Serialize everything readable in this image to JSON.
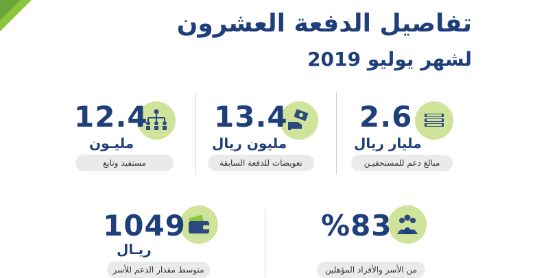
{
  "header": {
    "title": "تفاصيل الدفعة العشرون",
    "subtitle": "لشهر يوليو 2019"
  },
  "stats": [
    {
      "value": "2.6",
      "unit": "مليار ريال",
      "label": "مبالغ دعم للمستحقيـن",
      "icon": "money-stack-icon"
    },
    {
      "value": "13.4",
      "unit": "مليون ريال",
      "label": "تعويضات للدفعة السابقة",
      "icon": "hand-money-icon"
    },
    {
      "value": "12.4",
      "unit": "مليـون",
      "label": "مستفيد وتابع",
      "icon": "hierarchy-icon"
    },
    {
      "value": "%83",
      "unit": "",
      "label": "من الأسر والأفراد المؤهلين",
      "icon": "family-icon"
    },
    {
      "value": "1049",
      "unit": "ريـال",
      "label": "متوسط مقدار الدعم للأسر",
      "icon": "wallet-icon"
    }
  ],
  "colors": {
    "brand_navy": "#1f3f7a",
    "accent_green": "#8cc63f",
    "icon_bg": "#cfe39b",
    "pill_bg": "#eaeaea"
  }
}
